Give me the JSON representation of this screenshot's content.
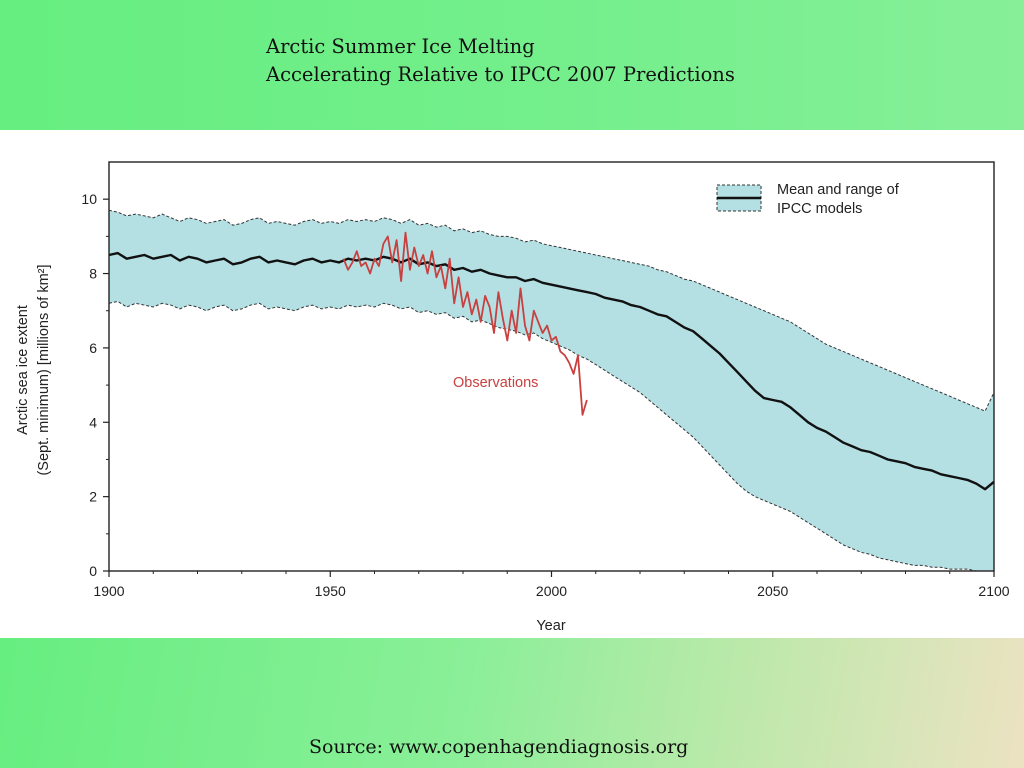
{
  "slide": {
    "title_line1": "Arctic Summer Ice Melting",
    "title_line2": "Accelerating Relative to IPCC 2007 Predictions",
    "source": "Source: www.copenhagendiagnosis.org"
  },
  "colors": {
    "band_fill": "#b4e0e4",
    "mean_line": "#111111",
    "observations": "#c8403f",
    "header_green": "#6ef086"
  },
  "chart_data": {
    "type": "line",
    "xlabel": "Year",
    "ylabel_line1": "Arctic sea ice extent",
    "ylabel_line2": "(Sept. minimum) [millions of km²]",
    "xlim": [
      1900,
      2100
    ],
    "ylim": [
      0,
      11
    ],
    "x_ticks": [
      1900,
      1950,
      2000,
      2050,
      2100
    ],
    "y_ticks": [
      0,
      2,
      4,
      6,
      8,
      10
    ],
    "grid": false,
    "legend_position": "top-right",
    "legend_line1": "Mean and range of",
    "legend_line2": "IPCC models",
    "annotation": "Observations",
    "series": [
      {
        "name": "Mean and range of IPCC models",
        "x": [
          1900,
          1902,
          1904,
          1906,
          1908,
          1910,
          1912,
          1914,
          1916,
          1918,
          1920,
          1922,
          1924,
          1926,
          1928,
          1930,
          1932,
          1934,
          1936,
          1938,
          1940,
          1942,
          1944,
          1946,
          1948,
          1950,
          1952,
          1954,
          1956,
          1958,
          1960,
          1962,
          1964,
          1966,
          1968,
          1970,
          1972,
          1974,
          1976,
          1978,
          1980,
          1982,
          1984,
          1986,
          1988,
          1990,
          1992,
          1994,
          1996,
          1998,
          2000,
          2002,
          2004,
          2006,
          2008,
          2010,
          2012,
          2014,
          2016,
          2018,
          2020,
          2022,
          2024,
          2026,
          2028,
          2030,
          2032,
          2034,
          2036,
          2038,
          2040,
          2042,
          2044,
          2046,
          2048,
          2050,
          2052,
          2054,
          2056,
          2058,
          2060,
          2062,
          2064,
          2066,
          2068,
          2070,
          2072,
          2074,
          2076,
          2078,
          2080,
          2082,
          2084,
          2086,
          2088,
          2090,
          2092,
          2094,
          2096,
          2098,
          2100
        ],
        "mean": [
          8.5,
          8.55,
          8.4,
          8.45,
          8.5,
          8.4,
          8.45,
          8.5,
          8.35,
          8.45,
          8.4,
          8.3,
          8.35,
          8.4,
          8.25,
          8.3,
          8.4,
          8.45,
          8.3,
          8.35,
          8.3,
          8.25,
          8.35,
          8.4,
          8.3,
          8.35,
          8.3,
          8.4,
          8.35,
          8.4,
          8.35,
          8.45,
          8.4,
          8.3,
          8.4,
          8.25,
          8.3,
          8.2,
          8.25,
          8.1,
          8.15,
          8.05,
          8.1,
          8.0,
          7.95,
          7.9,
          7.9,
          7.8,
          7.85,
          7.75,
          7.7,
          7.65,
          7.6,
          7.55,
          7.5,
          7.45,
          7.35,
          7.3,
          7.25,
          7.15,
          7.1,
          7.0,
          6.9,
          6.85,
          6.7,
          6.55,
          6.45,
          6.25,
          6.05,
          5.85,
          5.6,
          5.35,
          5.1,
          4.85,
          4.65,
          4.6,
          4.55,
          4.4,
          4.2,
          4.0,
          3.85,
          3.75,
          3.6,
          3.45,
          3.35,
          3.25,
          3.2,
          3.1,
          3.0,
          2.95,
          2.9,
          2.8,
          2.75,
          2.7,
          2.6,
          2.55,
          2.5,
          2.45,
          2.35,
          2.2,
          2.4
        ],
        "upper": [
          9.7,
          9.65,
          9.55,
          9.6,
          9.55,
          9.5,
          9.6,
          9.5,
          9.4,
          9.5,
          9.45,
          9.35,
          9.4,
          9.45,
          9.3,
          9.35,
          9.45,
          9.5,
          9.35,
          9.4,
          9.35,
          9.3,
          9.4,
          9.45,
          9.35,
          9.4,
          9.35,
          9.45,
          9.4,
          9.45,
          9.4,
          9.5,
          9.45,
          9.35,
          9.45,
          9.3,
          9.35,
          9.25,
          9.3,
          9.15,
          9.2,
          9.1,
          9.15,
          9.05,
          9.0,
          9.0,
          8.95,
          8.85,
          8.9,
          8.8,
          8.75,
          8.7,
          8.65,
          8.6,
          8.55,
          8.5,
          8.45,
          8.4,
          8.35,
          8.3,
          8.25,
          8.2,
          8.1,
          8.05,
          7.95,
          7.85,
          7.8,
          7.7,
          7.6,
          7.5,
          7.4,
          7.3,
          7.2,
          7.1,
          7.0,
          6.9,
          6.8,
          6.7,
          6.55,
          6.4,
          6.25,
          6.1,
          6.0,
          5.9,
          5.8,
          5.7,
          5.6,
          5.5,
          5.4,
          5.3,
          5.2,
          5.1,
          5.0,
          4.9,
          4.8,
          4.7,
          4.6,
          4.5,
          4.4,
          4.3,
          4.8
        ],
        "lower": [
          7.2,
          7.25,
          7.1,
          7.2,
          7.15,
          7.1,
          7.2,
          7.15,
          7.05,
          7.15,
          7.1,
          7.0,
          7.1,
          7.15,
          7.0,
          7.05,
          7.15,
          7.2,
          7.05,
          7.1,
          7.05,
          7.0,
          7.1,
          7.15,
          7.05,
          7.1,
          7.05,
          7.15,
          7.1,
          7.15,
          7.1,
          7.2,
          7.15,
          7.05,
          7.1,
          6.95,
          7.0,
          6.9,
          6.95,
          6.8,
          6.85,
          6.7,
          6.75,
          6.65,
          6.55,
          6.5,
          6.45,
          6.35,
          6.4,
          6.25,
          6.15,
          6.05,
          5.95,
          5.8,
          5.7,
          5.55,
          5.4,
          5.25,
          5.1,
          4.95,
          4.8,
          4.6,
          4.4,
          4.2,
          4.0,
          3.8,
          3.6,
          3.35,
          3.1,
          2.85,
          2.6,
          2.35,
          2.15,
          2.0,
          1.9,
          1.8,
          1.7,
          1.6,
          1.45,
          1.3,
          1.15,
          1.0,
          0.85,
          0.7,
          0.6,
          0.5,
          0.45,
          0.35,
          0.3,
          0.25,
          0.2,
          0.15,
          0.15,
          0.1,
          0.1,
          0.05,
          0.05,
          0.05,
          0.0,
          0.0,
          0.0
        ]
      },
      {
        "name": "Observations",
        "x": [
          1953,
          1954,
          1955,
          1956,
          1957,
          1958,
          1959,
          1960,
          1961,
          1962,
          1963,
          1964,
          1965,
          1966,
          1967,
          1968,
          1969,
          1970,
          1971,
          1972,
          1973,
          1974,
          1975,
          1976,
          1977,
          1978,
          1979,
          1980,
          1981,
          1982,
          1983,
          1984,
          1985,
          1986,
          1987,
          1988,
          1989,
          1990,
          1991,
          1992,
          1993,
          1994,
          1995,
          1996,
          1997,
          1998,
          1999,
          2000,
          2001,
          2002,
          2003,
          2004,
          2005,
          2006,
          2007,
          2008
        ],
        "values": [
          8.4,
          8.1,
          8.3,
          8.6,
          8.2,
          8.3,
          8.0,
          8.4,
          8.2,
          8.8,
          9.0,
          8.3,
          8.9,
          7.8,
          9.1,
          8.1,
          8.7,
          8.2,
          8.5,
          8.0,
          8.6,
          7.9,
          8.2,
          7.6,
          8.4,
          7.2,
          7.9,
          7.1,
          7.5,
          6.9,
          7.3,
          6.7,
          7.4,
          7.1,
          6.4,
          7.5,
          6.8,
          6.2,
          7.0,
          6.4,
          7.6,
          6.6,
          6.2,
          7.0,
          6.7,
          6.4,
          6.6,
          6.2,
          6.3,
          5.9,
          5.8,
          5.6,
          5.3,
          5.8,
          4.2,
          4.6
        ]
      }
    ]
  }
}
